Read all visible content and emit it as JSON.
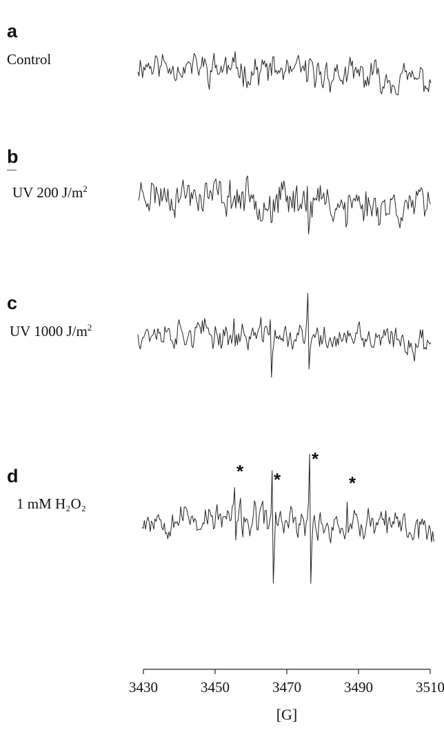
{
  "chart_data": {
    "type": "line",
    "xlabel": "[G]",
    "xlim": [
      3430,
      3510
    ],
    "x_ticks": [
      3430,
      3450,
      3470,
      3490,
      3510
    ],
    "x_tick_labels": [
      "3430",
      "3450",
      "3470",
      "3490",
      "3510"
    ],
    "grid": false,
    "panels": [
      {
        "letter": "a",
        "condition": "Control",
        "condition_sup": "",
        "condition_tail": "",
        "seed": 11,
        "spikes": [
          [
            3475.5,
            1.5,
            0.7
          ]
        ],
        "starred": []
      },
      {
        "letter": "b",
        "condition": "UV 200 J/m",
        "condition_sup": "2",
        "condition_tail": "",
        "seed": 23,
        "spikes": [
          [
            3465.5,
            0.8,
            1.2
          ],
          [
            3476,
            2.4,
            1.3
          ],
          [
            3486.5,
            0.6,
            1.0
          ]
        ],
        "starred": []
      },
      {
        "letter": "c",
        "condition": "UV 1000 J/m",
        "condition_sup": "2",
        "condition_tail": "",
        "seed": 37,
        "spikes": [
          [
            3455.5,
            0.6,
            0.6
          ],
          [
            3465.5,
            1.6,
            2.6
          ],
          [
            3476,
            2.8,
            2.4
          ],
          [
            3486.5,
            0.8,
            0.6
          ]
        ],
        "starred": []
      },
      {
        "letter": "d",
        "condition": "1 mM H₂O₂",
        "condition_sup": "",
        "condition_tail": "",
        "seed": 53,
        "spikes": [
          [
            3455.5,
            1.4,
            1.0
          ],
          [
            3466,
            2.6,
            4.0
          ],
          [
            3476.5,
            3.2,
            3.6
          ],
          [
            3487,
            1.4,
            1.2
          ]
        ],
        "starred": [
          3455.5,
          3466,
          3476.5,
          3487
        ]
      }
    ]
  }
}
